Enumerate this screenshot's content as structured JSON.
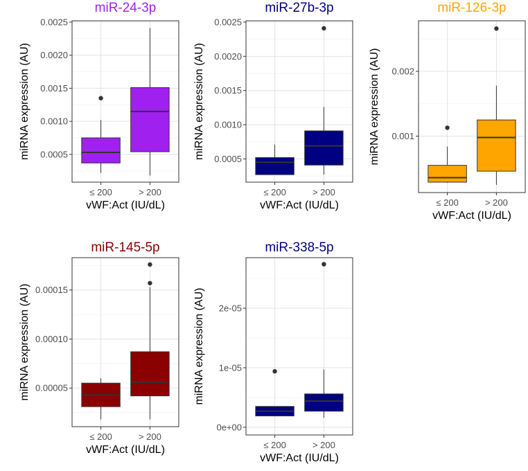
{
  "chart_data": [
    {
      "type": "boxplot",
      "title": "miR-24-3p",
      "title_color": "#A020F0",
      "fill_color": "#A020F0",
      "xlabel": "vWF:Act (IU/dL)",
      "ylabel": "miRNA expression (AU)",
      "categories": [
        "≤ 200",
        "> 200"
      ],
      "ylim": [
        8e-05,
        0.00252
      ],
      "yticks": [
        0.0005,
        0.001,
        0.0015,
        0.002,
        0.0025
      ],
      "ytick_labels": [
        "0.0005",
        "0.0010",
        "0.0015",
        "0.0020",
        "0.0025"
      ],
      "boxes": [
        {
          "category": "≤ 200",
          "whisker_low": 0.00022,
          "q1": 0.00037,
          "median": 0.00053,
          "q3": 0.00075,
          "whisker_high": 0.00102,
          "outliers": [
            0.00135
          ]
        },
        {
          "category": "> 200",
          "whisker_low": 0.00018,
          "q1": 0.00054,
          "median": 0.00115,
          "q3": 0.00151,
          "whisker_high": 0.00241,
          "outliers": []
        }
      ]
    },
    {
      "type": "boxplot",
      "title": "miR-27b-3p",
      "title_color": "#000080",
      "fill_color": "#000080",
      "xlabel": "vWF:Act (IU/dL)",
      "ylabel": "miRNA expression (AU)",
      "categories": [
        "≤ 200",
        "> 200"
      ],
      "ylim": [
        0.00016,
        0.00252
      ],
      "yticks": [
        0.0005,
        0.001,
        0.0015,
        0.002,
        0.0025
      ],
      "ytick_labels": [
        "0.0005",
        "0.0010",
        "0.0015",
        "0.0020",
        "0.0025"
      ],
      "boxes": [
        {
          "category": "≤ 200",
          "whisker_low": 0.00027,
          "q1": 0.00027,
          "median": 0.00045,
          "q3": 0.00052,
          "whisker_high": 0.00071,
          "outliers": []
        },
        {
          "category": "> 200",
          "whisker_low": 0.00027,
          "q1": 0.00041,
          "median": 0.00069,
          "q3": 0.00091,
          "whisker_high": 0.00126,
          "outliers": [
            0.00241
          ]
        }
      ]
    },
    {
      "type": "boxplot",
      "title": "miR-126-3p",
      "title_color": "#FFA500",
      "fill_color": "#FFA500",
      "xlabel": "vWF:Act (IU/dL)",
      "ylabel": "miRNA expression (AU)",
      "categories": [
        "≤ 200",
        "> 200"
      ],
      "ylim": [
        0.00013,
        0.00278
      ],
      "yticks": [
        0.001,
        0.002
      ],
      "ytick_labels": [
        "0.001",
        "0.002"
      ],
      "boxes": [
        {
          "category": "≤ 200",
          "whisker_low": 0.00028,
          "q1": 0.00029,
          "median": 0.00036,
          "q3": 0.00055,
          "whisker_high": 0.00084,
          "outliers": [
            0.00113
          ]
        },
        {
          "category": "> 200",
          "whisker_low": 0.00025,
          "q1": 0.00046,
          "median": 0.00098,
          "q3": 0.00125,
          "whisker_high": 0.00178,
          "outliers": [
            0.00266
          ]
        }
      ]
    },
    {
      "type": "boxplot",
      "title": "miR-145-5p",
      "title_color": "#8B0000",
      "fill_color": "#8B0000",
      "xlabel": "vWF:Act (IU/dL)",
      "ylabel": "miRNA expression (AU)",
      "categories": [
        "≤ 200",
        "> 200"
      ],
      "ylim": [
        1.06e-05,
        0.000183
      ],
      "yticks": [
        5e-05,
        0.0001,
        0.00015
      ],
      "ytick_labels": [
        "0.00005",
        "0.00010",
        "0.00015"
      ],
      "boxes": [
        {
          "category": "≤ 200",
          "whisker_low": 1.8e-05,
          "q1": 3.1e-05,
          "median": 4.3e-05,
          "q3": 5.5e-05,
          "whisker_high": 6e-05,
          "outliers": []
        },
        {
          "category": "> 200",
          "whisker_low": 1.8e-05,
          "q1": 4.2e-05,
          "median": 5.6e-05,
          "q3": 8.7e-05,
          "whisker_high": 0.000153,
          "outliers": [
            0.000157,
            0.000176
          ]
        }
      ]
    },
    {
      "type": "boxplot",
      "title": "miR-338-5p",
      "title_color": "#000080",
      "fill_color": "#000080",
      "xlabel": "vWF:Act (IU/dL)",
      "ylabel": "miRNA expression (AU)",
      "categories": [
        "≤ 200",
        "> 200"
      ],
      "ylim": [
        -1.3e-06,
        2.85e-05
      ],
      "yticks": [
        0,
        1e-05,
        2e-05
      ],
      "ytick_labels": [
        "0e+00",
        "1e-05",
        "2e-05"
      ],
      "boxes": [
        {
          "category": "≤ 200",
          "whisker_low": 1.9e-06,
          "q1": 1.9e-06,
          "median": 2.7e-06,
          "q3": 3.5e-06,
          "whisker_high": 3.5e-06,
          "outliers": [
            9.4e-06
          ]
        },
        {
          "category": "> 200",
          "whisker_low": 1.6e-06,
          "q1": 2.7e-06,
          "median": 4.4e-06,
          "q3": 5.6e-06,
          "whisker_high": 9.7e-06,
          "outliers": [
            2.74e-05
          ]
        }
      ]
    }
  ]
}
